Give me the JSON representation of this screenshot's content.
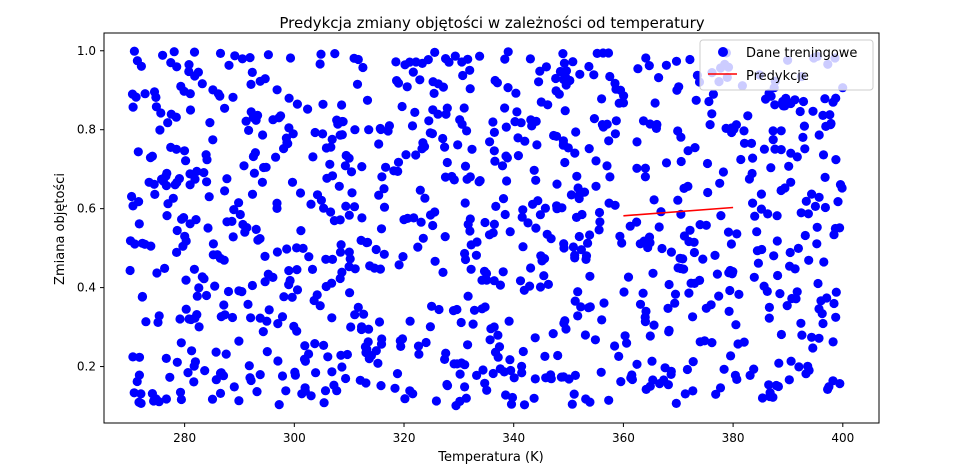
{
  "chart_data": {
    "type": "scatter",
    "title": "Predykcja zmiany objętości w zależności od temperatury",
    "xlabel": "Temperatura (K)",
    "ylabel": "Zmiana objętości",
    "xlim": [
      265.3,
      406.6
    ],
    "ylim": [
      0.057,
      1.045
    ],
    "x_ticks": [
      280,
      300,
      320,
      340,
      360,
      380,
      400
    ],
    "x_tick_labels": [
      "280",
      "300",
      "320",
      "340",
      "360",
      "380",
      "400"
    ],
    "y_ticks": [
      0.2,
      0.4,
      0.6,
      0.8,
      1.0
    ],
    "y_tick_labels": [
      "0.2",
      "0.4",
      "0.6",
      "0.8",
      "1.0"
    ],
    "grid": false,
    "legend_position": "upper right",
    "series": [
      {
        "name": "Dane treningowe",
        "kind": "scatter",
        "color": "#0000ff",
        "generator": "uniform random sample",
        "n_points": 1000,
        "x_range": [
          270,
          400
        ],
        "y_range": [
          0.1,
          1.0
        ]
      },
      {
        "name": "Predykcje",
        "kind": "line",
        "color": "#ff0000",
        "x": [
          360,
          380
        ],
        "y": [
          0.582,
          0.603
        ]
      }
    ]
  },
  "colors": {
    "scatter": "#0000ff",
    "prediction": "#ff0000",
    "axes": "#000000",
    "legend_border": "#cccccc"
  }
}
